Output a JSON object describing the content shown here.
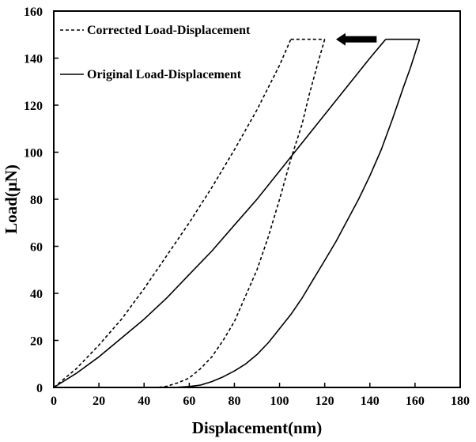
{
  "chart_data": {
    "type": "line",
    "title": "",
    "xlabel": "Displacement(nm)",
    "ylabel": "Load(μN)",
    "xlim": [
      0,
      180
    ],
    "ylim": [
      0,
      160
    ],
    "x_ticks": [
      0,
      20,
      40,
      60,
      80,
      100,
      120,
      140,
      160,
      180
    ],
    "y_ticks": [
      0,
      20,
      40,
      60,
      80,
      100,
      120,
      140,
      160
    ],
    "grid": false,
    "legend_position": "top-left",
    "series": [
      {
        "name": "Corrected Load-Displacement",
        "line_style": "dashed",
        "color": "#000000",
        "segments": {
          "loading": {
            "x": [
              0,
              10,
              20,
              30,
              40,
              50,
              60,
              70,
              80,
              90,
              100,
              105
            ],
            "y": [
              0,
              8,
              18,
              29,
              42,
              56,
              70,
              85,
              101,
              118,
              137,
              148
            ]
          },
          "hold": {
            "x": [
              105,
              120
            ],
            "y": [
              148,
              148
            ]
          },
          "unloading": {
            "x": [
              120,
              117,
              113,
              110,
              105,
              100,
              95,
              90,
              85,
              80,
              75,
              70,
              65,
              60,
              55,
              50,
              46
            ],
            "y": [
              148,
              138,
              124,
              112,
              97,
              80,
              64,
              50,
              39,
              28,
              20,
              13,
              8,
              4,
              2,
              0.5,
              0
            ]
          }
        }
      },
      {
        "name": "Original Load-Displacement",
        "line_style": "solid",
        "color": "#000000",
        "segments": {
          "loading": {
            "x": [
              0,
              10,
              20,
              30,
              40,
              50,
              60,
              70,
              80,
              90,
              100,
              110,
              120,
              130,
              140,
              147
            ],
            "y": [
              0,
              6,
              13,
              21,
              29,
              38,
              48,
              58,
              69,
              80,
              92,
              104,
              116,
              128,
              140,
              148
            ]
          },
          "hold": {
            "x": [
              147,
              162
            ],
            "y": [
              148,
              148
            ]
          },
          "unloading": {
            "x": [
              162,
              158,
              155,
              150,
              145,
              140,
              135,
              130,
              125,
              120,
              115,
              110,
              105,
              100,
              95,
              90,
              85,
              80,
              75,
              70,
              65,
              60,
              55,
              50,
              47
            ],
            "y": [
              148,
              136,
              128,
              114,
              101,
              90,
              80,
              71,
              62,
              54,
              46,
              38,
              31,
              25,
              19,
              14,
              10,
              7,
              4.5,
              2.5,
              1,
              0.4,
              0.1,
              0,
              0
            ]
          }
        }
      }
    ],
    "annotations": [
      {
        "type": "arrow",
        "direction": "left",
        "from": {
          "x": 143,
          "y": 148
        },
        "to": {
          "x": 125,
          "y": 148
        }
      }
    ]
  }
}
